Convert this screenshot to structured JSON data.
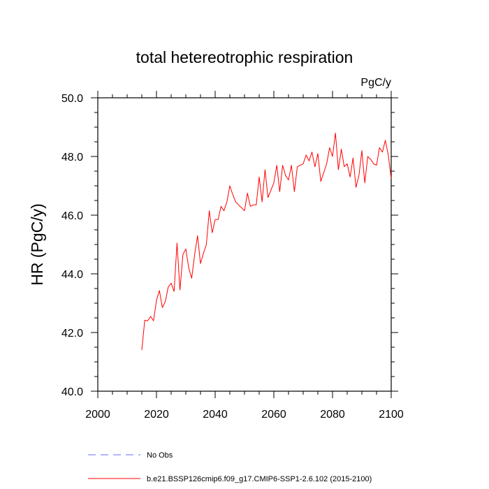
{
  "chart_data": {
    "type": "line",
    "title": "total hetereotrophic respiration",
    "units_label": "PgC/y",
    "xlabel": "",
    "ylabel": "HR  (PgC/y)",
    "xlim": [
      2000,
      2100
    ],
    "ylim": [
      40.0,
      50.0
    ],
    "x_major_ticks": [
      2000,
      2020,
      2040,
      2060,
      2080,
      2100
    ],
    "x_tick_labels": [
      "2000",
      "2020",
      "2040",
      "2060",
      "2080",
      "2100"
    ],
    "y_major_ticks": [
      40.0,
      42.0,
      44.0,
      46.0,
      48.0,
      50.0
    ],
    "y_tick_labels": [
      "40.0",
      "42.0",
      "44.0",
      "46.0",
      "48.0",
      "50.0"
    ],
    "grid": false,
    "legend": [
      {
        "name": "No Obs",
        "color": "#6b6bff",
        "dash": "dashed"
      },
      {
        "name": "b.e21.BSSP126cmip6.f09_g17.CMIP6-SSP1-2.6.102 (2015-2100)",
        "color": "#ff0000",
        "dash": "solid"
      }
    ],
    "series": [
      {
        "name": "b.e21.BSSP126cmip6.f09_g17.CMIP6-SSP1-2.6.102 (2015-2100)",
        "color": "#ff0000",
        "x": [
          2015,
          2016,
          2017,
          2018,
          2019,
          2020,
          2021,
          2022,
          2023,
          2024,
          2025,
          2026,
          2027,
          2028,
          2029,
          2030,
          2031,
          2032,
          2033,
          2034,
          2035,
          2036,
          2037,
          2038,
          2039,
          2040,
          2041,
          2042,
          2043,
          2044,
          2045,
          2046,
          2047,
          2048,
          2049,
          2050,
          2051,
          2052,
          2053,
          2054,
          2055,
          2056,
          2057,
          2058,
          2059,
          2060,
          2061,
          2062,
          2063,
          2064,
          2065,
          2066,
          2067,
          2068,
          2069,
          2070,
          2071,
          2072,
          2073,
          2074,
          2075,
          2076,
          2077,
          2078,
          2079,
          2080,
          2081,
          2082,
          2083,
          2084,
          2085,
          2086,
          2087,
          2088,
          2089,
          2090,
          2091,
          2092,
          2093,
          2094,
          2095,
          2096,
          2097,
          2098,
          2099,
          2100
        ],
        "values": [
          41.4,
          42.42,
          42.4,
          42.55,
          42.4,
          43.1,
          43.43,
          42.85,
          43.05,
          43.55,
          43.68,
          43.4,
          45.05,
          43.45,
          44.65,
          44.85,
          44.2,
          43.85,
          44.65,
          45.3,
          44.35,
          44.7,
          45.0,
          46.15,
          45.4,
          45.85,
          45.85,
          46.3,
          46.15,
          46.45,
          47.0,
          46.7,
          46.45,
          46.35,
          46.25,
          46.15,
          46.75,
          46.3,
          46.35,
          46.35,
          47.3,
          46.45,
          47.55,
          46.6,
          46.85,
          47.1,
          47.7,
          46.8,
          47.7,
          47.35,
          47.2,
          47.7,
          46.8,
          47.65,
          47.7,
          47.75,
          48.05,
          47.85,
          48.15,
          47.65,
          48.1,
          47.15,
          47.45,
          47.75,
          48.3,
          48.0,
          48.8,
          47.55,
          48.25,
          47.65,
          47.75,
          47.3,
          47.95,
          46.95,
          47.35,
          48.2,
          47.1,
          48.0,
          47.9,
          47.75,
          47.7,
          48.3,
          48.15,
          48.55,
          48.05,
          47.25
        ]
      }
    ]
  }
}
